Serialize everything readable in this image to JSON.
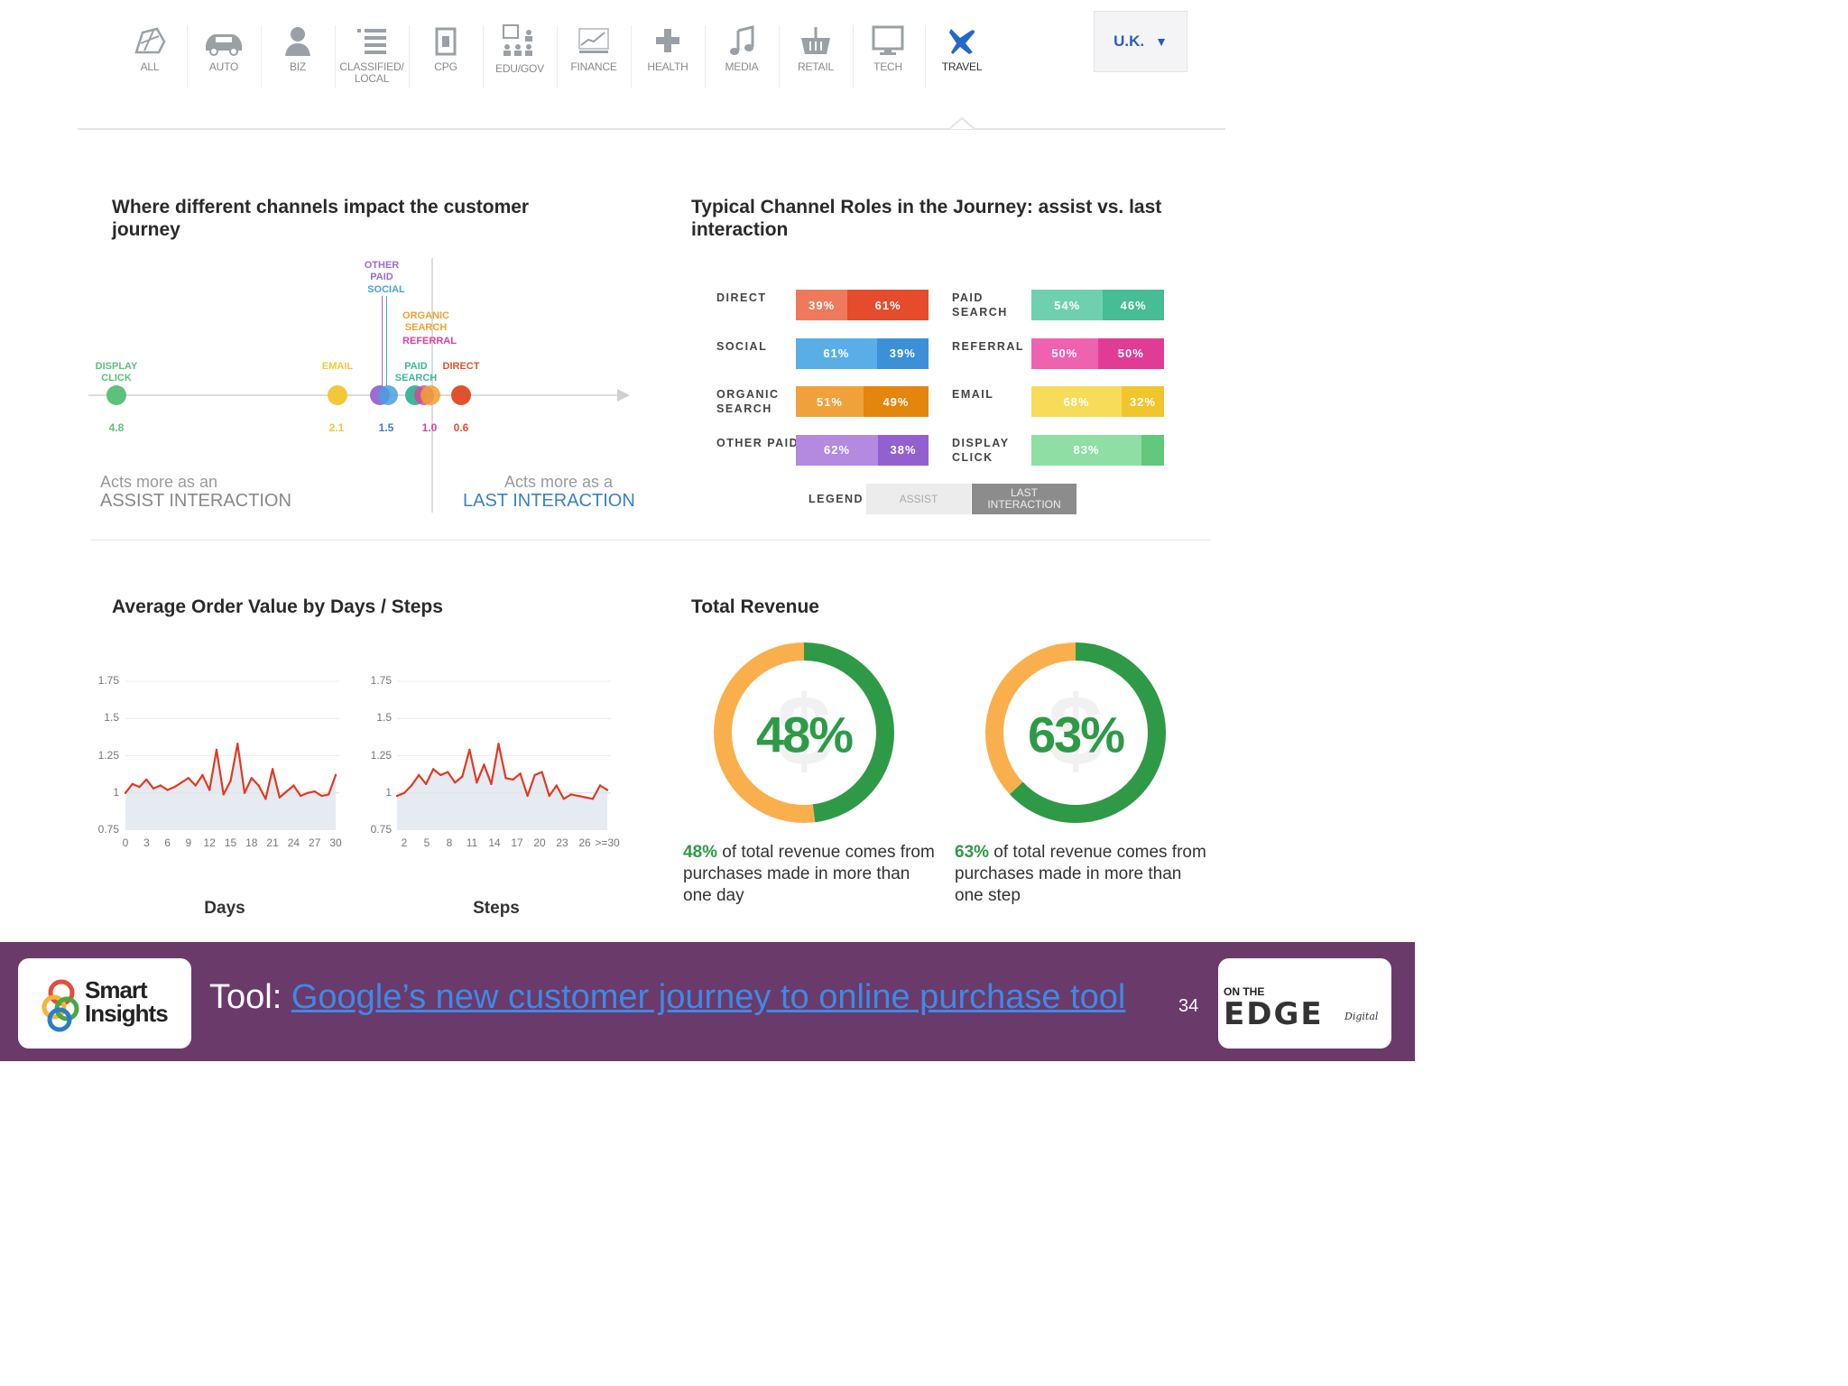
{
  "nav": {
    "items": [
      {
        "label": "ALL",
        "icon": "globe-icon"
      },
      {
        "label": "AUTO",
        "icon": "car-icon"
      },
      {
        "label": "BIZ",
        "icon": "person-icon"
      },
      {
        "label": "CLASSIFIED/",
        "label2": "LOCAL",
        "icon": "list-icon"
      },
      {
        "label": "CPG",
        "icon": "package-icon"
      },
      {
        "label": "EDU/GOV",
        "icon": "classroom-icon"
      },
      {
        "label": "FINANCE",
        "icon": "trend-chart-icon"
      },
      {
        "label": "HEALTH",
        "icon": "plus-icon"
      },
      {
        "label": "MEDIA",
        "icon": "music-note-icon"
      },
      {
        "label": "RETAIL",
        "icon": "basket-icon"
      },
      {
        "label": "TECH",
        "icon": "monitor-icon"
      },
      {
        "label": "TRAVEL",
        "icon": "airplane-icon",
        "active": true
      }
    ],
    "region": "U.K.",
    "region_arrow": "▼"
  },
  "journey": {
    "title": "Where different channels impact the customer journey",
    "labels": {
      "display": [
        "DISPLAY",
        "CLICK"
      ],
      "email": "EMAIL",
      "other_paid": "OTHER",
      "other_paid2": "PAID",
      "social": "SOCIAL",
      "organic": [
        "ORGANIC",
        "SEARCH"
      ],
      "referral": "REFERRAL",
      "paid_search": [
        "PAID",
        "SEARCH"
      ],
      "direct": "DIRECT"
    },
    "values": {
      "display": "4.8",
      "email": "2.1",
      "social": "1.5",
      "search": "1.0",
      "direct": "0.6"
    },
    "assist_caption": "Acts more as an",
    "assist_label": "ASSIST INTERACTION",
    "last_caption": "Acts more as a",
    "last_label": "LAST INTERACTION",
    "colors": {
      "display": "#5cc27b",
      "email": "#f3c73a",
      "other_paid": "#9b6dd1",
      "social": "#4aa0e0",
      "organic": "#f0a030",
      "referral": "#e0409a",
      "paid_search": "#3bb89a",
      "direct": "#e0522e"
    }
  },
  "roles": {
    "title": "Typical Channel Roles in the Journey: assist vs. last interaction",
    "left": [
      {
        "label": "DIRECT",
        "assist": "39%",
        "last": "61%",
        "assist_frac": 0.39,
        "c1": "#ef7a5b",
        "c2": "#e44c2b"
      },
      {
        "label": "SOCIAL",
        "assist": "61%",
        "last": "39%",
        "assist_frac": 0.61,
        "c1": "#5aaee8",
        "c2": "#3b90d8"
      },
      {
        "label": "ORGANIC",
        "label2": "SEARCH",
        "assist": "51%",
        "last": "49%",
        "assist_frac": 0.51,
        "c1": "#f0a13a",
        "c2": "#e4850c"
      },
      {
        "label": "OTHER PAID",
        "assist": "62%",
        "last": "38%",
        "assist_frac": 0.62,
        "c1": "#b38ae0",
        "c2": "#9361cf"
      }
    ],
    "right": [
      {
        "label": "PAID",
        "label2": "SEARCH",
        "assist": "54%",
        "last": "46%",
        "assist_frac": 0.54,
        "c1": "#6fd0b0",
        "c2": "#46bd95"
      },
      {
        "label": "REFERRAL",
        "assist": "50%",
        "last": "50%",
        "assist_frac": 0.5,
        "c1": "#ef62b0",
        "c2": "#e03c95"
      },
      {
        "label": "EMAIL",
        "assist": "68%",
        "last": "32%",
        "assist_frac": 0.68,
        "c1": "#f7dc5a",
        "c2": "#f1c62c"
      },
      {
        "label": "DISPLAY",
        "label2": "CLICK",
        "assist": "83%",
        "last": "",
        "assist_frac": 0.83,
        "c1": "#8fdea3",
        "c2": "#62c97c"
      }
    ],
    "legend_label": "LEGEND",
    "legend_assist": "ASSIST",
    "legend_last": "LAST INTERACTION"
  },
  "aov": {
    "title": "Average Order Value by Days / Steps",
    "y_ticks": [
      "1.75",
      "1.5",
      "1.25",
      "1",
      "0.75"
    ],
    "days_ticks": [
      "0",
      "3",
      "6",
      "9",
      "12",
      "15",
      "18",
      "21",
      "24",
      "27",
      "30"
    ],
    "steps_ticks": [
      "2",
      "5",
      "8",
      "11",
      "14",
      "17",
      "20",
      "23",
      "26",
      ">=30"
    ],
    "days_label": "Days",
    "steps_label": "Steps"
  },
  "chart_data": [
    {
      "type": "line",
      "title": "",
      "xlabel": "Days",
      "ylabel": "",
      "ylim": [
        0.75,
        1.75
      ],
      "x": [
        0,
        1,
        2,
        3,
        4,
        5,
        6,
        7,
        8,
        9,
        10,
        11,
        12,
        13,
        14,
        15,
        16,
        17,
        18,
        19,
        20,
        21,
        22,
        23,
        24,
        25,
        26,
        27,
        28,
        29,
        30
      ],
      "series": [
        {
          "values": [
            1.0,
            1.06,
            1.04,
            1.09,
            1.03,
            1.05,
            1.02,
            1.04,
            1.07,
            1.1,
            1.05,
            1.12,
            1.02,
            1.29,
            0.99,
            1.08,
            1.33,
            1.0,
            1.1,
            1.05,
            0.96,
            1.16,
            0.97,
            1.01,
            1.05,
            0.98,
            1.0,
            1.01,
            0.98,
            0.99,
            1.12
          ]
        }
      ]
    },
    {
      "type": "line",
      "title": "",
      "xlabel": "Steps",
      "ylabel": "",
      "ylim": [
        0.75,
        1.75
      ],
      "x": [
        1,
        2,
        3,
        4,
        5,
        6,
        7,
        8,
        9,
        10,
        11,
        12,
        13,
        14,
        15,
        16,
        17,
        18,
        19,
        20,
        21,
        22,
        23,
        24,
        25,
        26,
        27,
        28,
        29,
        30
      ],
      "series": [
        {
          "values": [
            0.98,
            1.0,
            1.05,
            1.12,
            1.06,
            1.16,
            1.12,
            1.14,
            1.07,
            1.11,
            1.29,
            1.07,
            1.19,
            1.06,
            1.33,
            1.1,
            1.09,
            1.13,
            0.98,
            1.12,
            1.14,
            0.98,
            1.05,
            0.96,
            0.99,
            0.98,
            0.97,
            0.96,
            1.05,
            1.02
          ]
        }
      ]
    }
  ],
  "revenue": {
    "title": "Total Revenue",
    "donuts": [
      {
        "pct": "48%",
        "frac": 0.48,
        "cap_hl": "48%",
        "cap": " of total revenue comes from purchases made in more than one day"
      },
      {
        "pct": "63%",
        "frac": 0.63,
        "cap_hl": "63%",
        "cap": " of total revenue comes from purchases made in more than one step"
      }
    ],
    "green": "#2e9a48",
    "orange": "#f9b04c"
  },
  "footer": {
    "smart_insights": [
      "Smart",
      "Insights"
    ],
    "tool_prefix": "Tool: ",
    "tool_link": "Google’s new customer journey to online purchase tool",
    "page": "34",
    "edge_top": "ON THE",
    "edge_main": "EDGE",
    "edge_sub": "Digital",
    "bg": "#6a3a6a"
  }
}
